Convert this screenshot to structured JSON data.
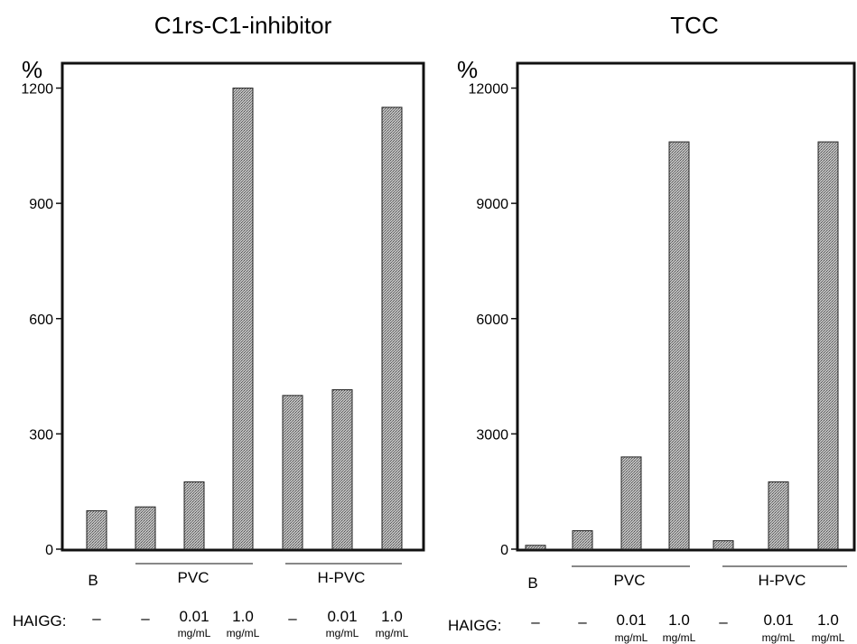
{
  "chart_data": [
    {
      "type": "bar",
      "title": "C1rs-C1-inhibitor",
      "ylabel": "%",
      "ylim": [
        0,
        1260
      ],
      "yticks": [
        "0",
        "300",
        "600",
        "900",
        "1200"
      ],
      "categories": [
        "B",
        "PVC -",
        "PVC 0.01 mg/mL",
        "PVC 1.0 mg/mL",
        "H-PVC -",
        "H-PVC 0.01 mg/mL",
        "H-PVC 1.0 mg/mL"
      ],
      "values": [
        100,
        110,
        175,
        1200,
        400,
        415,
        1150
      ],
      "x_label_b": "B",
      "groups": [
        "PVC",
        "H-PVC"
      ],
      "row_label": "HAIGG:",
      "haigg": [
        {
          "conc": "-",
          "unit": ""
        },
        {
          "conc": "-",
          "unit": ""
        },
        {
          "conc": "0.01",
          "unit": "mg/mL"
        },
        {
          "conc": "1.0",
          "unit": "mg/mL"
        },
        {
          "conc": "-",
          "unit": ""
        },
        {
          "conc": "0.01",
          "unit": "mg/mL"
        },
        {
          "conc": "1.0",
          "unit": "mg/mL"
        }
      ],
      "bar_color": "#9a9a9a"
    },
    {
      "type": "bar",
      "title": "TCC",
      "ylabel": "%",
      "ylim": [
        0,
        12600
      ],
      "yticks": [
        "0",
        "3000",
        "6000",
        "9000",
        "12000"
      ],
      "categories": [
        "B",
        "PVC -",
        "PVC 0.01 mg/mL",
        "PVC 1.0 mg/mL",
        "H-PVC -",
        "H-PVC 0.01 mg/mL",
        "H-PVC 1.0 mg/mL"
      ],
      "values": [
        100,
        480,
        2400,
        10600,
        220,
        1750,
        10600
      ],
      "x_label_b": "B",
      "groups": [
        "PVC",
        "H-PVC"
      ],
      "row_label": "HAIGG:",
      "haigg": [
        {
          "conc": "-",
          "unit": ""
        },
        {
          "conc": "-",
          "unit": ""
        },
        {
          "conc": "0.01",
          "unit": "mg/mL"
        },
        {
          "conc": "1.0",
          "unit": "mg/mL"
        },
        {
          "conc": "-",
          "unit": ""
        },
        {
          "conc": "0.01",
          "unit": "mg/mL"
        },
        {
          "conc": "1.0",
          "unit": "mg/mL"
        }
      ],
      "bar_color": "#9a9a9a"
    }
  ]
}
